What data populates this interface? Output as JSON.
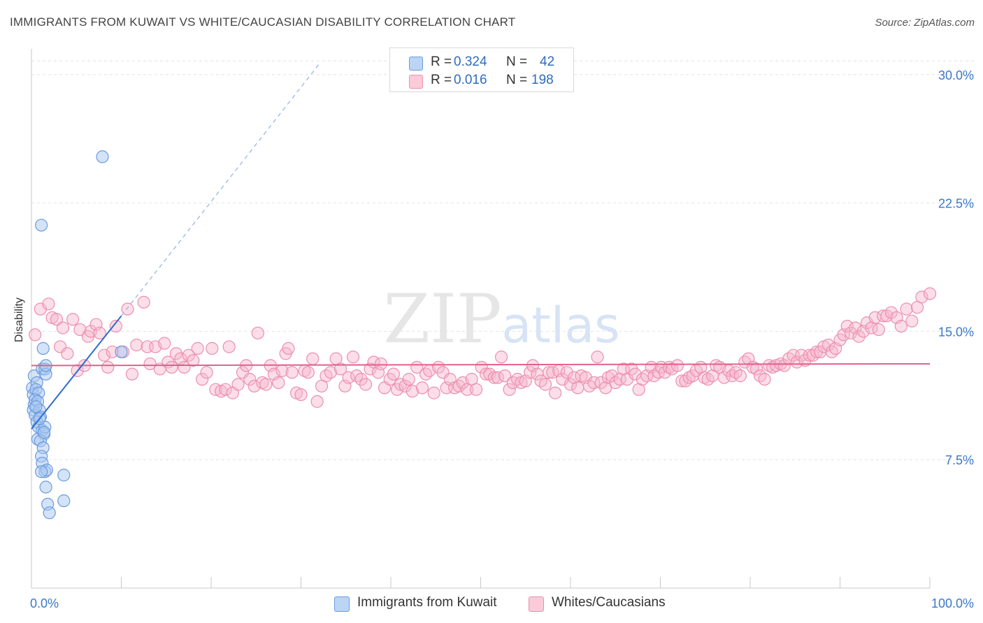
{
  "header": {
    "title": "IMMIGRANTS FROM KUWAIT VS WHITE/CAUCASIAN DISABILITY CORRELATION CHART",
    "source": "Source: ZipAtlas.com"
  },
  "watermark": {
    "zip": "ZIP",
    "atlas": "atlas"
  },
  "legend": {
    "r_label": "R =",
    "n_label": "N =",
    "series": [
      {
        "name": "Immigrants from Kuwait",
        "r": "0.324",
        "n": "42",
        "fill": "#a9c7f0",
        "stroke": "#6b9be0"
      },
      {
        "name": "Whites/Caucasians",
        "r": "0.016",
        "n": "198",
        "fill": "#f7b6cb",
        "stroke": "#ec8fae"
      }
    ]
  },
  "colors": {
    "blue_line": "#2f6cd0",
    "pink_line": "#e2608c",
    "axis_label": "#3a78c9",
    "grid": "#e2e2e2"
  },
  "chart_data": {
    "type": "scatter",
    "title": "IMMIGRANTS FROM KUWAIT VS WHITE/CAUCASIAN DISABILITY CORRELATION CHART",
    "xlabel": "",
    "ylabel": "Disability",
    "xlim": [
      0,
      100
    ],
    "ylim": [
      0,
      31.5
    ],
    "x_tick_labels": [
      "0.0%",
      "100.0%"
    ],
    "y_ticks": [
      7.5,
      15.0,
      22.5,
      30.0
    ],
    "y_tick_labels": [
      "7.5%",
      "15.0%",
      "22.5%",
      "30.0%"
    ],
    "grid": true,
    "series": [
      {
        "name": "Immigrants from Kuwait",
        "trend": {
          "x0": 0.0,
          "y0": 9.3,
          "x1": 10.0,
          "y1": 15.9,
          "dash_to": [
            32.0,
            30.6
          ]
        },
        "points": [
          [
            0.1,
            11.7
          ],
          [
            0.2,
            11.3
          ],
          [
            0.3,
            10.7
          ],
          [
            0.2,
            10.4
          ],
          [
            0.4,
            10.1
          ],
          [
            0.3,
            12.4
          ],
          [
            0.6,
            12.0
          ],
          [
            0.5,
            11.6
          ],
          [
            0.8,
            11.4
          ],
          [
            0.4,
            11.0
          ],
          [
            0.7,
            10.9
          ],
          [
            0.9,
            10.4
          ],
          [
            1.0,
            10.0
          ],
          [
            0.6,
            9.7
          ],
          [
            0.8,
            9.4
          ],
          [
            1.2,
            9.2
          ],
          [
            1.4,
            9.0
          ],
          [
            1.5,
            9.4
          ],
          [
            0.7,
            8.7
          ],
          [
            1.0,
            8.6
          ],
          [
            1.3,
            8.2
          ],
          [
            1.1,
            7.7
          ],
          [
            1.2,
            7.3
          ],
          [
            1.5,
            6.8
          ],
          [
            1.7,
            6.9
          ],
          [
            1.1,
            6.8
          ],
          [
            1.6,
            5.9
          ],
          [
            1.8,
            4.9
          ],
          [
            2.0,
            4.4
          ],
          [
            3.6,
            6.6
          ],
          [
            3.6,
            5.1
          ],
          [
            1.2,
            12.8
          ],
          [
            1.5,
            12.8
          ],
          [
            1.6,
            12.5
          ],
          [
            1.3,
            14.0
          ],
          [
            1.1,
            21.2
          ],
          [
            7.9,
            25.2
          ],
          [
            10.0,
            13.8
          ],
          [
            1.6,
            13.0
          ],
          [
            0.5,
            10.6
          ],
          [
            0.9,
            9.9
          ],
          [
            1.4,
            9.1
          ]
        ]
      },
      {
        "name": "Whites/Caucasians",
        "trend": {
          "x0": 0.0,
          "y0": 13.0,
          "x1": 100.0,
          "y1": 13.1
        },
        "points": [
          [
            0.4,
            14.8
          ],
          [
            1.0,
            16.3
          ],
          [
            1.9,
            16.6
          ],
          [
            2.3,
            15.8
          ],
          [
            2.8,
            15.7
          ],
          [
            3.2,
            14.1
          ],
          [
            3.5,
            15.2
          ],
          [
            4.0,
            13.7
          ],
          [
            4.6,
            15.7
          ],
          [
            5.1,
            12.7
          ],
          [
            5.4,
            15.1
          ],
          [
            5.9,
            13.0
          ],
          [
            6.3,
            14.7
          ],
          [
            6.6,
            15.0
          ],
          [
            7.2,
            15.4
          ],
          [
            7.6,
            14.9
          ],
          [
            8.1,
            13.6
          ],
          [
            8.5,
            12.9
          ],
          [
            9.0,
            13.8
          ],
          [
            9.4,
            15.3
          ],
          [
            10.2,
            13.8
          ],
          [
            10.7,
            16.3
          ],
          [
            11.2,
            12.5
          ],
          [
            11.7,
            14.2
          ],
          [
            12.5,
            16.7
          ],
          [
            12.9,
            14.1
          ],
          [
            13.2,
            13.1
          ],
          [
            13.8,
            14.1
          ],
          [
            14.3,
            12.8
          ],
          [
            14.8,
            14.3
          ],
          [
            15.2,
            13.2
          ],
          [
            15.6,
            12.9
          ],
          [
            16.1,
            13.7
          ],
          [
            16.6,
            13.4
          ],
          [
            17.0,
            12.9
          ],
          [
            17.5,
            13.6
          ],
          [
            18.0,
            13.3
          ],
          [
            18.5,
            14.0
          ],
          [
            19.0,
            12.2
          ],
          [
            19.5,
            12.6
          ],
          [
            20.1,
            14.0
          ],
          [
            20.5,
            11.6
          ],
          [
            21.1,
            11.5
          ],
          [
            21.6,
            11.6
          ],
          [
            22.0,
            14.1
          ],
          [
            22.4,
            11.4
          ],
          [
            23.0,
            11.9
          ],
          [
            23.5,
            12.6
          ],
          [
            23.9,
            13.0
          ],
          [
            24.3,
            12.2
          ],
          [
            24.8,
            11.8
          ],
          [
            25.2,
            14.9
          ],
          [
            25.7,
            12.0
          ],
          [
            26.1,
            11.9
          ],
          [
            26.6,
            13.0
          ],
          [
            27.0,
            12.5
          ],
          [
            27.5,
            12.0
          ],
          [
            27.9,
            12.7
          ],
          [
            28.3,
            13.7
          ],
          [
            28.6,
            14.0
          ],
          [
            29.0,
            12.6
          ],
          [
            29.5,
            11.4
          ],
          [
            30.0,
            11.3
          ],
          [
            30.4,
            12.7
          ],
          [
            30.8,
            12.6
          ],
          [
            31.3,
            13.4
          ],
          [
            31.8,
            10.9
          ],
          [
            32.3,
            11.8
          ],
          [
            32.8,
            12.4
          ],
          [
            33.3,
            12.6
          ],
          [
            33.9,
            13.4
          ],
          [
            34.4,
            12.8
          ],
          [
            34.9,
            11.8
          ],
          [
            35.3,
            12.3
          ],
          [
            35.8,
            13.5
          ],
          [
            36.2,
            12.4
          ],
          [
            36.7,
            12.2
          ],
          [
            37.2,
            11.9
          ],
          [
            37.7,
            12.8
          ],
          [
            38.1,
            13.2
          ],
          [
            38.6,
            12.6
          ],
          [
            38.9,
            13.1
          ],
          [
            39.3,
            11.7
          ],
          [
            39.9,
            12.2
          ],
          [
            40.3,
            12.5
          ],
          [
            40.7,
            11.6
          ],
          [
            41.1,
            11.9
          ],
          [
            41.6,
            11.8
          ],
          [
            42.0,
            12.2
          ],
          [
            42.4,
            11.5
          ],
          [
            42.9,
            12.9
          ],
          [
            43.5,
            11.7
          ],
          [
            43.9,
            12.5
          ],
          [
            44.3,
            12.7
          ],
          [
            44.8,
            11.4
          ],
          [
            45.3,
            12.9
          ],
          [
            45.8,
            12.6
          ],
          [
            46.2,
            11.7
          ],
          [
            46.6,
            12.2
          ],
          [
            47.1,
            11.7
          ],
          [
            47.6,
            11.8
          ],
          [
            48.0,
            12.0
          ],
          [
            48.5,
            11.6
          ],
          [
            49.0,
            12.2
          ],
          [
            49.5,
            11.6
          ],
          [
            50.1,
            12.9
          ],
          [
            50.6,
            12.5
          ],
          [
            51.0,
            12.5
          ],
          [
            51.5,
            12.3
          ],
          [
            51.9,
            12.3
          ],
          [
            52.3,
            13.5
          ],
          [
            52.7,
            12.4
          ],
          [
            53.2,
            11.6
          ],
          [
            53.6,
            12.0
          ],
          [
            54.1,
            12.2
          ],
          [
            54.5,
            12.0
          ],
          [
            55.0,
            12.1
          ],
          [
            55.5,
            12.6
          ],
          [
            55.8,
            13.0
          ],
          [
            56.3,
            12.5
          ],
          [
            56.7,
            12.1
          ],
          [
            57.2,
            11.9
          ],
          [
            57.6,
            12.6
          ],
          [
            58.0,
            12.6
          ],
          [
            58.3,
            11.4
          ],
          [
            58.7,
            12.7
          ],
          [
            59.1,
            12.2
          ],
          [
            59.6,
            12.6
          ],
          [
            60.0,
            11.9
          ],
          [
            60.4,
            12.3
          ],
          [
            60.8,
            11.7
          ],
          [
            61.2,
            12.4
          ],
          [
            61.7,
            12.3
          ],
          [
            62.1,
            11.8
          ],
          [
            62.6,
            12.0
          ],
          [
            63.0,
            13.5
          ],
          [
            63.4,
            12.0
          ],
          [
            63.9,
            11.7
          ],
          [
            64.2,
            12.3
          ],
          [
            64.6,
            12.4
          ],
          [
            65.0,
            12.0
          ],
          [
            65.5,
            12.2
          ],
          [
            65.9,
            12.8
          ],
          [
            66.3,
            12.2
          ],
          [
            66.8,
            12.8
          ],
          [
            67.2,
            12.5
          ],
          [
            67.6,
            11.6
          ],
          [
            68.0,
            12.2
          ],
          [
            68.5,
            12.4
          ],
          [
            69.0,
            12.9
          ],
          [
            69.3,
            12.4
          ],
          [
            69.8,
            12.6
          ],
          [
            70.1,
            12.9
          ],
          [
            70.5,
            12.6
          ],
          [
            71.0,
            12.9
          ],
          [
            71.3,
            12.8
          ],
          [
            71.9,
            13.0
          ],
          [
            72.4,
            12.1
          ],
          [
            72.8,
            12.1
          ],
          [
            73.2,
            12.3
          ],
          [
            73.6,
            12.4
          ],
          [
            74.0,
            12.7
          ],
          [
            74.5,
            12.9
          ],
          [
            74.9,
            12.3
          ],
          [
            75.3,
            12.2
          ],
          [
            75.8,
            12.4
          ],
          [
            76.2,
            13.0
          ],
          [
            76.6,
            12.9
          ],
          [
            77.1,
            12.3
          ],
          [
            77.6,
            12.7
          ],
          [
            78.0,
            12.4
          ],
          [
            78.4,
            12.6
          ],
          [
            78.9,
            12.4
          ],
          [
            79.4,
            13.2
          ],
          [
            79.8,
            13.4
          ],
          [
            80.3,
            12.9
          ],
          [
            80.7,
            12.8
          ],
          [
            81.1,
            12.4
          ],
          [
            81.6,
            12.2
          ],
          [
            82.1,
            13.0
          ],
          [
            82.5,
            12.9
          ],
          [
            82.9,
            13.0
          ],
          [
            83.4,
            13.1
          ],
          [
            83.8,
            13.0
          ],
          [
            84.3,
            13.4
          ],
          [
            84.8,
            13.6
          ],
          [
            85.2,
            13.2
          ],
          [
            85.7,
            13.6
          ],
          [
            86.1,
            13.3
          ],
          [
            86.6,
            13.6
          ],
          [
            87.0,
            13.6
          ],
          [
            87.4,
            13.8
          ],
          [
            87.8,
            13.8
          ],
          [
            88.2,
            14.1
          ],
          [
            88.7,
            14.2
          ],
          [
            89.1,
            13.8
          ],
          [
            89.5,
            14.0
          ],
          [
            90.0,
            14.5
          ],
          [
            90.4,
            14.8
          ],
          [
            90.8,
            15.3
          ],
          [
            91.2,
            14.9
          ],
          [
            91.7,
            15.2
          ],
          [
            92.1,
            14.7
          ],
          [
            92.6,
            15.0
          ],
          [
            93.0,
            15.5
          ],
          [
            93.5,
            15.2
          ],
          [
            93.9,
            15.8
          ],
          [
            94.3,
            15.1
          ],
          [
            94.8,
            15.9
          ],
          [
            95.2,
            15.9
          ],
          [
            95.7,
            16.1
          ],
          [
            96.3,
            15.8
          ],
          [
            96.8,
            15.3
          ],
          [
            97.4,
            16.3
          ],
          [
            98.0,
            15.6
          ],
          [
            98.6,
            16.4
          ],
          [
            99.1,
            17.0
          ],
          [
            100.0,
            17.2
          ]
        ]
      }
    ]
  }
}
